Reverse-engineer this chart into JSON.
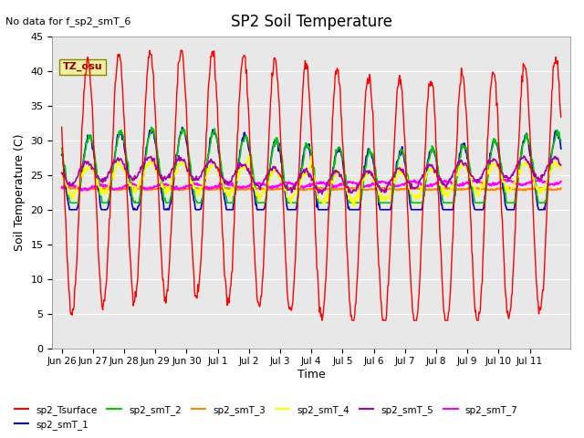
{
  "title": "SP2 Soil Temperature",
  "ylabel": "Soil Temperature (C)",
  "xlabel": "Time",
  "no_data_text": "No data for f_sp2_smT_6",
  "tz_label": "TZ_osu",
  "ylim": [
    0,
    45
  ],
  "yticks": [
    0,
    5,
    10,
    15,
    20,
    25,
    30,
    35,
    40,
    45
  ],
  "xtick_labels": [
    "Jun 26",
    "Jun 27",
    "Jun 28",
    "Jun 29",
    "Jun 30",
    "Jul 1",
    "Jul 2",
    "Jul 3",
    "Jul 4",
    "Jul 5",
    "Jul 6",
    "Jul 7",
    "Jul 8",
    "Jul 9",
    "Jul 10",
    "Jul 11"
  ],
  "series_colors": {
    "sp2_Tsurface": "#ff0000",
    "sp2_smT_1": "#0000cc",
    "sp2_smT_2": "#00cc00",
    "sp2_smT_3": "#ff8800",
    "sp2_smT_4": "#ffff00",
    "sp2_smT_5": "#aa00aa",
    "sp2_smT_7": "#ff00ff"
  },
  "background_color": "#e8e8e8",
  "plot_bg_color": "#e8e8e8"
}
